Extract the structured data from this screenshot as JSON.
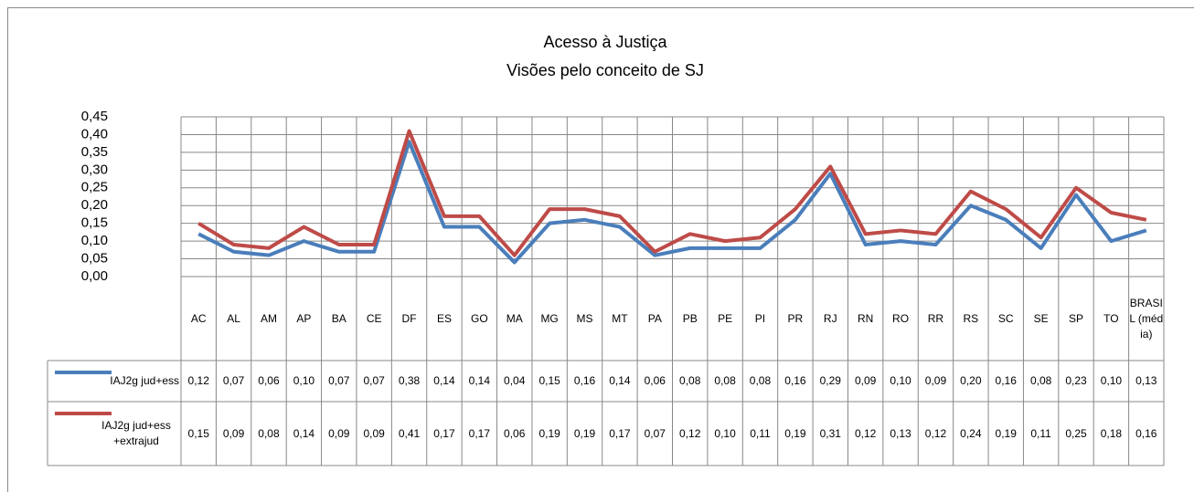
{
  "chart_data": {
    "type": "line",
    "title": "Acesso à Justiça",
    "subtitle": "Visões pelo conceito de SJ",
    "categories": [
      "AC",
      "AL",
      "AM",
      "AP",
      "BA",
      "CE",
      "DF",
      "ES",
      "GO",
      "MA",
      "MG",
      "MS",
      "MT",
      "PA",
      "PB",
      "PE",
      "PI",
      "PR",
      "RJ",
      "RN",
      "RO",
      "RR",
      "RS",
      "SC",
      "SE",
      "SP",
      "TO",
      "BRASIL (média)"
    ],
    "series": [
      {
        "name": "IAJ2g jud+ess",
        "color": "#4a7ebb",
        "values": [
          0.12,
          0.07,
          0.06,
          0.1,
          0.07,
          0.07,
          0.38,
          0.14,
          0.14,
          0.04,
          0.15,
          0.16,
          0.14,
          0.06,
          0.08,
          0.08,
          0.08,
          0.16,
          0.29,
          0.09,
          0.1,
          0.09,
          0.2,
          0.16,
          0.08,
          0.23,
          0.1,
          0.13
        ],
        "value_labels": [
          "0,12",
          "0,07",
          "0,06",
          "0,10",
          "0,07",
          "0,07",
          "0,38",
          "0,14",
          "0,14",
          "0,04",
          "0,15",
          "0,16",
          "0,14",
          "0,06",
          "0,08",
          "0,08",
          "0,08",
          "0,16",
          "0,29",
          "0,09",
          "0,10",
          "0,09",
          "0,20",
          "0,16",
          "0,08",
          "0,23",
          "0,10",
          "0,13"
        ]
      },
      {
        "name": "IAJ2g jud+ess +extrajud",
        "color": "#be4b48",
        "values": [
          0.15,
          0.09,
          0.08,
          0.14,
          0.09,
          0.09,
          0.41,
          0.17,
          0.17,
          0.06,
          0.19,
          0.19,
          0.17,
          0.07,
          0.12,
          0.1,
          0.11,
          0.19,
          0.31,
          0.12,
          0.13,
          0.12,
          0.24,
          0.19,
          0.11,
          0.25,
          0.18,
          0.16
        ],
        "value_labels": [
          "0,15",
          "0,09",
          "0,08",
          "0,14",
          "0,09",
          "0,09",
          "0,41",
          "0,17",
          "0,17",
          "0,06",
          "0,19",
          "0,19",
          "0,17",
          "0,07",
          "0,12",
          "0,10",
          "0,11",
          "0,19",
          "0,31",
          "0,12",
          "0,13",
          "0,12",
          "0,24",
          "0,19",
          "0,11",
          "0,25",
          "0,18",
          "0,16"
        ]
      }
    ],
    "ylim": [
      0,
      0.45
    ],
    "yticks": [
      {
        "value": 0,
        "label": "0,00"
      },
      {
        "value": 0.05,
        "label": "0,05"
      },
      {
        "value": 0.1,
        "label": "0,10"
      },
      {
        "value": 0.15,
        "label": "0,15"
      },
      {
        "value": 0.2,
        "label": "0,20"
      },
      {
        "value": 0.25,
        "label": "0,25"
      },
      {
        "value": 0.3,
        "label": "0,30"
      },
      {
        "value": 0.35,
        "label": "0,35"
      },
      {
        "value": 0.4,
        "label": "0,40"
      },
      {
        "value": 0.45,
        "label": "0,45"
      }
    ],
    "grid": true
  }
}
